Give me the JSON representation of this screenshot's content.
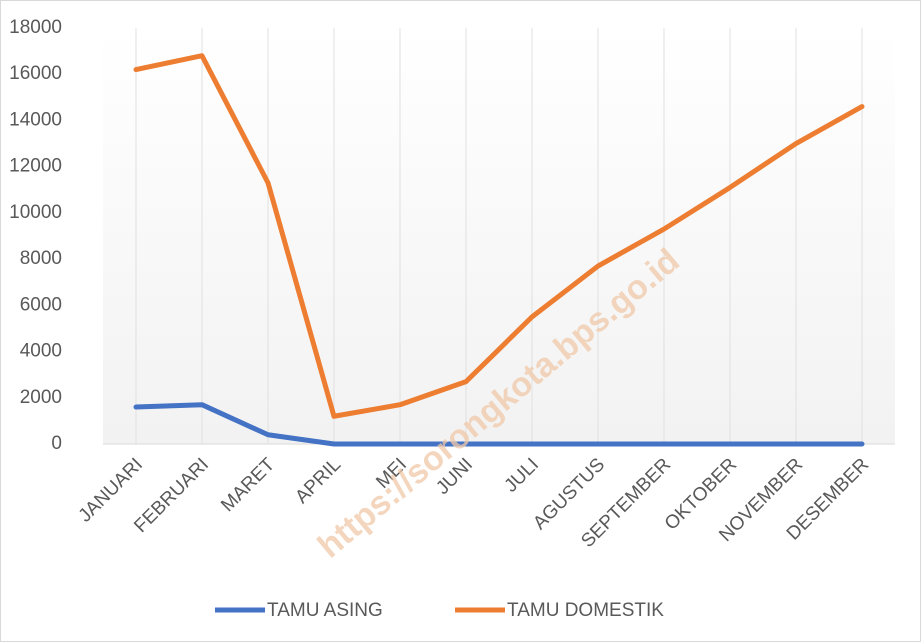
{
  "chart_data": {
    "type": "line",
    "categories": [
      "JANUARI",
      "FEBRUARI",
      "MARET",
      "APRIL",
      "MEI",
      "JUNI",
      "JULI",
      "AGUSTUS",
      "SEPTEMBER",
      "OKTOBER",
      "NOVEMBER",
      "DESEMBER"
    ],
    "series": [
      {
        "name": "TAMU ASING",
        "color": "#4472c4",
        "values": [
          1600,
          1700,
          400,
          0,
          0,
          0,
          0,
          0,
          0,
          0,
          0,
          0
        ]
      },
      {
        "name": "TAMU DOMESTIK",
        "color": "#ed7d31",
        "values": [
          16200,
          16800,
          11300,
          1200,
          1700,
          2700,
          5500,
          7700,
          9300,
          11100,
          13000,
          14600
        ]
      }
    ],
    "ylim": [
      0,
      18000
    ],
    "yticks": [
      0,
      2000,
      4000,
      6000,
      8000,
      10000,
      12000,
      14000,
      16000,
      18000
    ],
    "grid": "x",
    "legend": "bottom",
    "watermark": "https://sorongkota.bps.go.id"
  }
}
